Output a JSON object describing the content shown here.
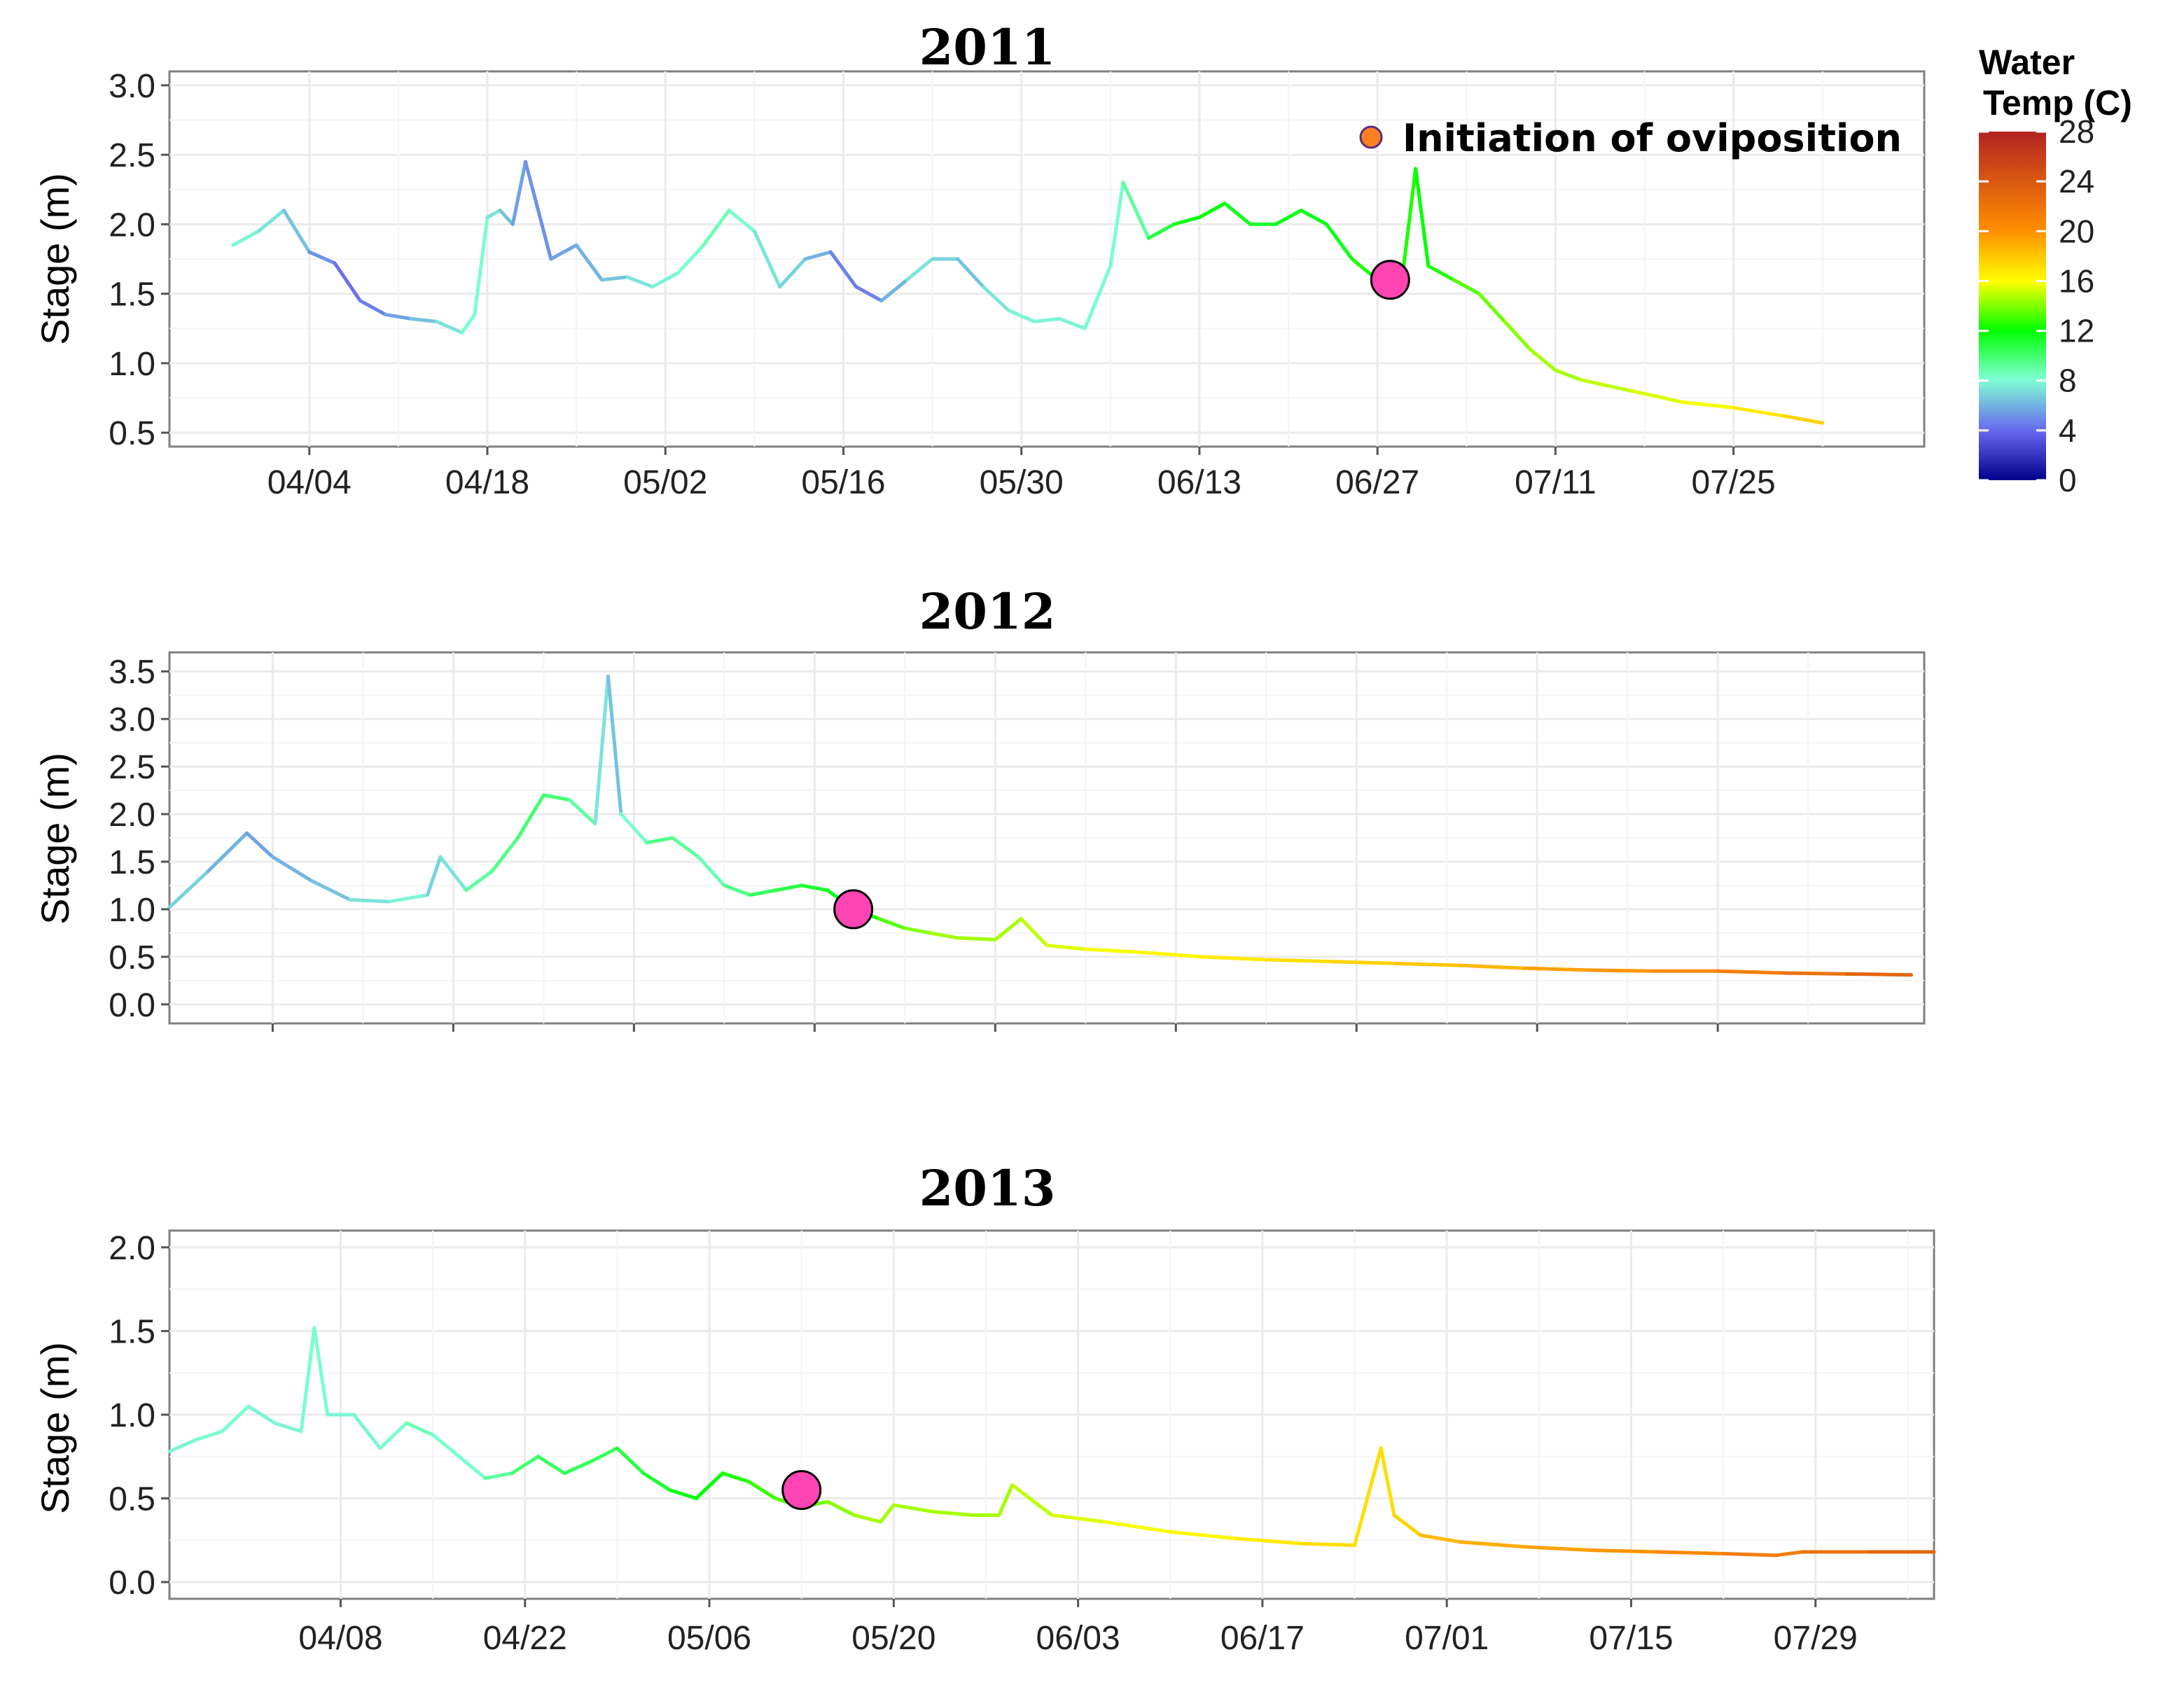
{
  "chart_data": [
    {
      "type": "line",
      "title": "2011",
      "ylabel": "Stage (m)",
      "ylim": [
        0.4,
        3.1
      ],
      "yticks": [
        "0.5",
        "1.0",
        "1.5",
        "2.0",
        "2.5",
        "3.0"
      ],
      "xlim": [
        "2011-03-24",
        "2011-08-09"
      ],
      "xticks": [
        "04/04",
        "04/18",
        "05/02",
        "05/16",
        "05/30",
        "06/13",
        "06/27",
        "07/11",
        "07/25"
      ],
      "grid": true,
      "series": [
        {
          "x": [
            "2011-03-29",
            "2011-03-31",
            "2011-04-02",
            "2011-04-04",
            "2011-04-06",
            "2011-04-08",
            "2011-04-10",
            "2011-04-12",
            "2011-04-14",
            "2011-04-16",
            "2011-04-17",
            "2011-04-18",
            "2011-04-19",
            "2011-04-20",
            "2011-04-21",
            "2011-04-23",
            "2011-04-25",
            "2011-04-27",
            "2011-04-29",
            "2011-05-01",
            "2011-05-03",
            "2011-05-05",
            "2011-05-07",
            "2011-05-09",
            "2011-05-11",
            "2011-05-13",
            "2011-05-15",
            "2011-05-17",
            "2011-05-19",
            "2011-05-21",
            "2011-05-23",
            "2011-05-25",
            "2011-05-27",
            "2011-05-29",
            "2011-05-31",
            "2011-06-02",
            "2011-06-04",
            "2011-06-06",
            "2011-06-07",
            "2011-06-09",
            "2011-06-11",
            "2011-06-13",
            "2011-06-15",
            "2011-06-17",
            "2011-06-19",
            "2011-06-21",
            "2011-06-23",
            "2011-06-25",
            "2011-06-27",
            "2011-06-29",
            "2011-06-30",
            "2011-07-01",
            "2011-07-03",
            "2011-07-05",
            "2011-07-07",
            "2011-07-09",
            "2011-07-11",
            "2011-07-13",
            "2011-07-17",
            "2011-07-21",
            "2011-07-25",
            "2011-07-29",
            "2011-08-01"
          ],
          "y": [
            1.85,
            1.95,
            2.1,
            1.8,
            1.72,
            1.45,
            1.35,
            1.32,
            1.3,
            1.22,
            1.35,
            2.05,
            2.1,
            2.0,
            2.45,
            1.75,
            1.85,
            1.6,
            1.62,
            1.55,
            1.65,
            1.85,
            2.1,
            1.95,
            1.55,
            1.75,
            1.8,
            1.55,
            1.45,
            1.6,
            1.75,
            1.75,
            1.55,
            1.38,
            1.3,
            1.32,
            1.25,
            1.7,
            2.3,
            1.9,
            2.0,
            2.05,
            2.15,
            2.0,
            2.0,
            2.1,
            2.0,
            1.75,
            1.6,
            1.65,
            2.4,
            1.7,
            1.6,
            1.5,
            1.3,
            1.1,
            0.95,
            0.88,
            0.8,
            0.72,
            0.68,
            0.62,
            0.57
          ],
          "temp": [
            9,
            9,
            8,
            7,
            5,
            5,
            6,
            7,
            8,
            9,
            10,
            9,
            8,
            7,
            6,
            6,
            7,
            7,
            8,
            9,
            9,
            10,
            10,
            9,
            8,
            8,
            6,
            5,
            6,
            8,
            9,
            7,
            8,
            9,
            9,
            9,
            9,
            10,
            9,
            12,
            13,
            14,
            14,
            13,
            13,
            14,
            13,
            14,
            15,
            15,
            14,
            14,
            15,
            16,
            16,
            17,
            17,
            17,
            18,
            18,
            19,
            20,
            21
          ]
        }
      ],
      "annotations": [
        {
          "type": "point",
          "x": "2011-06-28",
          "y": 1.6,
          "color": "#ff44b4"
        }
      ]
    },
    {
      "type": "line",
      "title": "2012",
      "ylabel": "Stage (m)",
      "ylim": [
        -0.2,
        3.7
      ],
      "yticks": [
        "0.0",
        "0.5",
        "1.0",
        "1.5",
        "2.0",
        "2.5",
        "3.0",
        "3.5"
      ],
      "xlim": [
        "2012-03-29",
        "2012-08-12"
      ],
      "xticks": [],
      "grid": true,
      "series": [
        {
          "x": [
            "2012-03-29",
            "2012-04-01",
            "2012-04-04",
            "2012-04-06",
            "2012-04-09",
            "2012-04-12",
            "2012-04-15",
            "2012-04-18",
            "2012-04-19",
            "2012-04-21",
            "2012-04-23",
            "2012-04-25",
            "2012-04-27",
            "2012-04-29",
            "2012-05-01",
            "2012-05-02",
            "2012-05-03",
            "2012-05-05",
            "2012-05-07",
            "2012-05-09",
            "2012-05-11",
            "2012-05-13",
            "2012-05-15",
            "2012-05-17",
            "2012-05-19",
            "2012-05-21",
            "2012-05-23",
            "2012-05-25",
            "2012-05-27",
            "2012-05-29",
            "2012-06-01",
            "2012-06-03",
            "2012-06-05",
            "2012-06-08",
            "2012-06-12",
            "2012-06-17",
            "2012-06-22",
            "2012-06-27",
            "2012-07-02",
            "2012-07-07",
            "2012-07-12",
            "2012-07-17",
            "2012-07-22",
            "2012-07-27",
            "2012-08-01",
            "2012-08-06",
            "2012-08-11"
          ],
          "y": [
            1.02,
            1.4,
            1.8,
            1.55,
            1.3,
            1.1,
            1.08,
            1.15,
            1.55,
            1.2,
            1.4,
            1.75,
            2.2,
            2.15,
            1.9,
            3.45,
            2.0,
            1.7,
            1.75,
            1.55,
            1.25,
            1.15,
            1.2,
            1.25,
            1.2,
            1.0,
            0.9,
            0.8,
            0.75,
            0.7,
            0.68,
            0.9,
            0.62,
            0.58,
            0.55,
            0.5,
            0.47,
            0.45,
            0.43,
            0.41,
            0.38,
            0.36,
            0.35,
            0.35,
            0.33,
            0.32,
            0.31
          ],
          "temp": [
            8,
            8,
            6,
            7,
            7,
            8,
            9,
            9,
            7,
            10,
            11,
            11,
            12,
            11,
            10,
            7,
            8,
            11,
            11,
            10,
            10,
            12,
            12,
            13,
            13,
            14,
            15,
            16,
            17,
            17,
            17,
            17,
            18,
            18,
            19,
            19,
            20,
            20,
            21,
            21,
            22,
            23,
            23,
            24,
            24,
            25,
            25
          ]
        }
      ],
      "annotations": [
        {
          "type": "point",
          "x": "2012-05-21",
          "y": 1.0,
          "color": "#ff44b4"
        }
      ]
    },
    {
      "type": "line",
      "title": "2013",
      "ylabel": "Stage (m)",
      "ylim": [
        -0.1,
        2.1
      ],
      "yticks": [
        "0.0",
        "0.5",
        "1.0",
        "1.5",
        "2.0"
      ],
      "xlim": [
        "2013-03-26",
        "2013-08-07"
      ],
      "xticks": [
        "04/08",
        "04/22",
        "05/06",
        "05/20",
        "06/03",
        "06/17",
        "07/01",
        "07/15",
        "07/29"
      ],
      "grid": true,
      "series": [
        {
          "x": [
            "2013-03-26",
            "2013-03-28",
            "2013-03-30",
            "2013-04-01",
            "2013-04-03",
            "2013-04-05",
            "2013-04-06",
            "2013-04-07",
            "2013-04-09",
            "2013-04-11",
            "2013-04-13",
            "2013-04-15",
            "2013-04-17",
            "2013-04-19",
            "2013-04-21",
            "2013-04-23",
            "2013-04-25",
            "2013-04-27",
            "2013-04-29",
            "2013-05-01",
            "2013-05-03",
            "2013-05-05",
            "2013-05-07",
            "2013-05-09",
            "2013-05-11",
            "2013-05-13",
            "2013-05-15",
            "2013-05-17",
            "2013-05-19",
            "2013-05-20",
            "2013-05-23",
            "2013-05-26",
            "2013-05-28",
            "2013-05-29",
            "2013-06-01",
            "2013-06-05",
            "2013-06-10",
            "2013-06-15",
            "2013-06-20",
            "2013-06-24",
            "2013-06-26",
            "2013-06-27",
            "2013-06-29",
            "2013-07-02",
            "2013-07-07",
            "2013-07-12",
            "2013-07-17",
            "2013-07-22",
            "2013-07-26",
            "2013-07-28",
            "2013-08-02",
            "2013-08-07"
          ],
          "y": [
            0.78,
            0.85,
            0.9,
            1.05,
            0.95,
            0.9,
            1.52,
            1.0,
            1.0,
            0.8,
            0.95,
            0.88,
            0.75,
            0.62,
            0.65,
            0.75,
            0.65,
            0.72,
            0.8,
            0.65,
            0.55,
            0.5,
            0.65,
            0.6,
            0.5,
            0.45,
            0.48,
            0.4,
            0.36,
            0.46,
            0.42,
            0.4,
            0.4,
            0.58,
            0.4,
            0.36,
            0.3,
            0.26,
            0.23,
            0.22,
            0.8,
            0.4,
            0.28,
            0.24,
            0.21,
            0.19,
            0.18,
            0.17,
            0.16,
            0.18,
            0.18,
            0.18
          ],
          "temp": [
            9,
            9,
            10,
            9,
            9,
            9,
            10,
            9,
            9,
            9,
            10,
            10,
            9,
            10,
            11,
            12,
            12,
            12,
            12,
            13,
            13,
            14,
            14,
            15,
            15,
            16,
            16,
            17,
            17,
            17,
            17,
            17,
            17,
            17,
            18,
            18,
            19,
            19,
            20,
            20,
            20,
            20,
            21,
            22,
            22,
            23,
            23,
            24,
            24,
            24,
            25,
            25
          ]
        }
      ],
      "annotations": [
        {
          "type": "point",
          "x": "2013-05-13",
          "y": 0.55,
          "color": "#ff44b4"
        }
      ]
    }
  ],
  "legend": {
    "title_line1": "Water",
    "title_line2": "Temp (C)",
    "ticks": [
      "28",
      "24",
      "20",
      "16",
      "12",
      "8",
      "4",
      "0"
    ],
    "range": [
      0,
      28
    ],
    "colors": [
      "#00008b",
      "#6666ee",
      "#7fffd4",
      "#00ff00",
      "#ffff00",
      "#ff8c00",
      "#b22222"
    ]
  },
  "annotation_legend": {
    "label": "Initiation of oviposition",
    "marker_color": "#ff7f24"
  }
}
